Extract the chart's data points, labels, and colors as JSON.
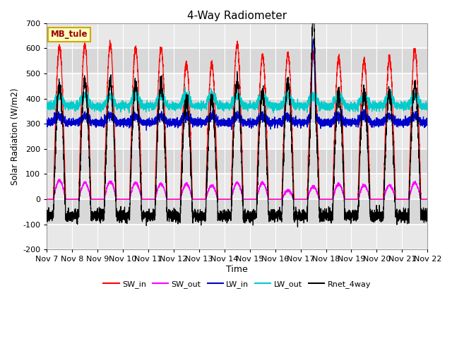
{
  "title": "4-Way Radiometer",
  "xlabel": "Time",
  "ylabel": "Solar Radiation (W/m2)",
  "ylim": [
    -200,
    700
  ],
  "yticks": [
    -200,
    -100,
    0,
    100,
    200,
    300,
    400,
    500,
    600,
    700
  ],
  "x_tick_labels": [
    "Nov 7",
    "Nov 8",
    "Nov 9",
    "Nov 10",
    "Nov 11",
    "Nov 12",
    "Nov 13",
    "Nov 14",
    "Nov 15",
    "Nov 16",
    "Nov 17",
    "Nov 18",
    "Nov 19",
    "Nov 20",
    "Nov 21",
    "Nov 22"
  ],
  "num_days": 15,
  "station_label": "MB_tule",
  "colors": {
    "SW_in": "#FF0000",
    "SW_out": "#FF00FF",
    "LW_in": "#0000CC",
    "LW_out": "#00CCCC",
    "Rnet_4way": "#000000"
  },
  "background_color": "#FFFFFF",
  "plot_bg_bands": [
    "#E8E8E8",
    "#D8D8D8"
  ],
  "grid_color": "#FFFFFF",
  "sw_peaks": [
    605,
    615,
    615,
    600,
    600,
    540,
    535,
    615,
    570,
    580,
    580,
    560,
    550,
    560,
    595
  ],
  "sw_out_peaks": [
    75,
    65,
    70,
    65,
    60,
    60,
    55,
    65,
    65,
    35,
    50,
    60,
    55,
    55,
    65
  ],
  "lw_in_base": 305,
  "lw_out_base": 370,
  "rnet_night": -80
}
